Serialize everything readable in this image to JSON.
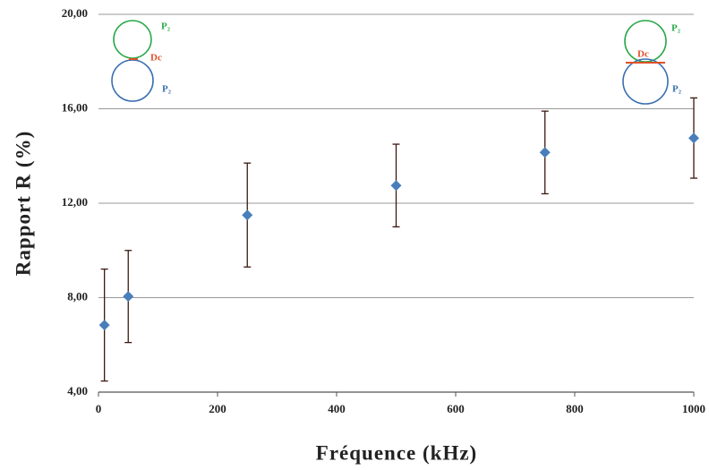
{
  "chart_data": {
    "type": "scatter",
    "xlabel": "Fréquence (kHz)",
    "ylabel": "Rapport R (%)",
    "series": [
      {
        "color": "#4a7ebb",
        "x": [
          10,
          50,
          250,
          500,
          750,
          1000
        ],
        "values": [
          6.84,
          8.05,
          11.5,
          12.75,
          14.15,
          14.76
        ],
        "errors": [
          2.37,
          1.95,
          2.2,
          1.75,
          1.75,
          1.7
        ]
      }
    ],
    "error_color": "#3a1a10",
    "xlim": [
      0,
      1000
    ],
    "xticks": [
      0,
      200,
      400,
      600,
      800,
      1000
    ],
    "ylim": [
      4,
      20
    ],
    "yticks": [
      {
        "value": 4,
        "label": "4,00"
      },
      {
        "value": 8,
        "label": "8,00"
      },
      {
        "value": 12,
        "label": "12,00"
      },
      {
        "value": 16,
        "label": "16,00"
      },
      {
        "value": 20,
        "label": "20,00"
      }
    ],
    "grid": true,
    "annotations": [
      "P₂",
      "Dc",
      "P₂",
      "P₂",
      "Dc",
      "P₂"
    ]
  }
}
